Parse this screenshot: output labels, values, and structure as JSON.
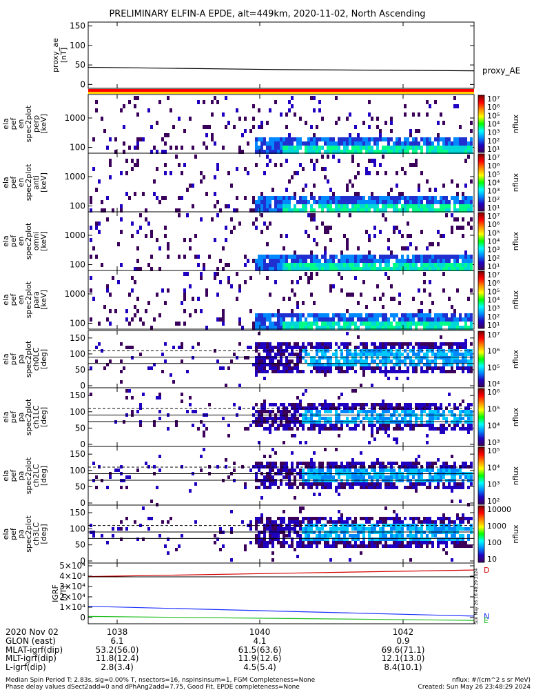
{
  "title": "PRELIMINARY ELFIN-A EPDE, alt=449km, 2020-11-02, North Ascending",
  "chart_data": [
    {
      "type": "line",
      "ylabel_lines": [
        "proxy_ae",
        "[nT]"
      ],
      "yticks": [
        "150",
        "100",
        "50",
        "0"
      ],
      "ylim": [
        -10,
        160
      ],
      "series": [
        {
          "name": "proxy_AE",
          "color": "#000000",
          "x": [
            0,
            0.5,
            1
          ],
          "values": [
            44,
            38,
            35
          ]
        }
      ]
    },
    {
      "type": "heatmap",
      "ylabel_lines": [
        "ela",
        "pef",
        "en",
        "spec2plot",
        "perp",
        "[keV]"
      ],
      "yticks": [
        "1000",
        "100"
      ],
      "log": true,
      "colorbar_ticks": [
        "10⁷",
        "10⁶",
        "10⁵",
        "10⁴",
        "10³",
        "10²",
        "10¹"
      ],
      "colorbar_label": "nflux"
    },
    {
      "type": "heatmap",
      "ylabel_lines": [
        "ela",
        "pef",
        "en",
        "spec2plot",
        "anti",
        "[keV]"
      ],
      "yticks": [
        "1000",
        "100"
      ],
      "log": true,
      "colorbar_ticks": [
        "10⁷",
        "10⁶",
        "10⁵",
        "10⁴",
        "10³",
        "10²",
        "10¹"
      ],
      "colorbar_label": "nflux"
    },
    {
      "type": "heatmap",
      "ylabel_lines": [
        "ela",
        "pef",
        "en",
        "spec2plot",
        "omni",
        "[keV]"
      ],
      "yticks": [
        "1000",
        "100"
      ],
      "log": true,
      "colorbar_ticks": [
        "10⁷",
        "10⁶",
        "10⁵",
        "10⁴",
        "10³",
        "10²",
        "10¹"
      ],
      "colorbar_label": "nflux"
    },
    {
      "type": "heatmap",
      "ylabel_lines": [
        "ela",
        "pef",
        "en",
        "spec2plot",
        "para",
        "[keV]"
      ],
      "yticks": [
        "1000",
        "100"
      ],
      "log": true,
      "colorbar_ticks": [
        "10⁷",
        "10⁶",
        "10⁵",
        "10⁴",
        "10³",
        "10²",
        "10¹"
      ],
      "colorbar_label": "nflux"
    },
    {
      "type": "heatmap",
      "ylabel_lines": [
        "ela",
        "pef",
        "pa",
        "spec2plot",
        "ch0LC",
        "[deg]"
      ],
      "yticks": [
        "150",
        "100",
        "50",
        "0"
      ],
      "ylim": [
        0,
        180
      ],
      "lines": [
        {
          "y": 110,
          "dashed": true
        },
        {
          "y": 90,
          "dashed": false
        },
        {
          "y": 70,
          "dashed": false
        }
      ],
      "colorbar_ticks": [
        "10⁷",
        "10⁶",
        "10⁵",
        "10⁴"
      ],
      "colorbar_label": "nflux"
    },
    {
      "type": "heatmap",
      "ylabel_lines": [
        "ela",
        "pef",
        "pa",
        "spec2plot",
        "ch1LC",
        "[deg]"
      ],
      "yticks": [
        "150",
        "100",
        "50",
        "0"
      ],
      "ylim": [
        0,
        180
      ],
      "lines": [
        {
          "y": 110,
          "dashed": true
        },
        {
          "y": 90,
          "dashed": false
        },
        {
          "y": 70,
          "dashed": false
        }
      ],
      "colorbar_ticks": [
        "10⁶",
        "10⁵",
        "10⁴",
        "10³"
      ],
      "colorbar_label": "nflux"
    },
    {
      "type": "heatmap",
      "ylabel_lines": [
        "ela",
        "pef",
        "pa",
        "spec2plot",
        "ch2LC",
        "[deg]"
      ],
      "yticks": [
        "150",
        "100",
        "50",
        "0"
      ],
      "ylim": [
        0,
        180
      ],
      "lines": [
        {
          "y": 110,
          "dashed": true
        },
        {
          "y": 90,
          "dashed": false
        },
        {
          "y": 70,
          "dashed": false
        }
      ],
      "colorbar_ticks": [
        "10⁵",
        "10⁴",
        "10³",
        "10²"
      ],
      "colorbar_label": "nflux"
    },
    {
      "type": "heatmap",
      "ylabel_lines": [
        "ela",
        "pef",
        "pa",
        "spec2plot",
        "ch3LC",
        "[deg]"
      ],
      "yticks": [
        "150",
        "100",
        "50",
        "0"
      ],
      "ylim": [
        0,
        180
      ],
      "lines": [
        {
          "y": 110,
          "dashed": true
        },
        {
          "y": 90,
          "dashed": false
        },
        {
          "y": 70,
          "dashed": false
        }
      ],
      "colorbar_ticks": [
        "10000",
        "1000",
        "100",
        "10"
      ],
      "colorbar_label": "nflux"
    },
    {
      "type": "line",
      "ylabel_lines": [
        "IGRF",
        "[nT]"
      ],
      "yticks": [
        "5×10⁴",
        "4×10⁴",
        "3×10⁴",
        "2×10⁴",
        "1×10⁴",
        "0"
      ],
      "ylim": [
        -2000,
        52000
      ],
      "series": [
        {
          "name": "D",
          "color": "#d40000",
          "x": [
            0,
            1
          ],
          "values": [
            40000,
            45800
          ]
        },
        {
          "name": "N",
          "color": "#1a2fff",
          "x": [
            0,
            1
          ],
          "values": [
            13500,
            4800
          ]
        },
        {
          "name": "E",
          "color": "#1fbf1f",
          "x": [
            0,
            1
          ],
          "values": [
            4500,
            1000
          ]
        }
      ]
    }
  ],
  "xaxis": {
    "ticks": [
      {
        "label": "1038",
        "glon": "6.1",
        "mlat": "53.2(56.0)",
        "mlt": "11.8(12.4)",
        "l": "2.8(3.4)"
      },
      {
        "label": "1040",
        "glon": "4.1",
        "mlat": "61.5(63.6)",
        "mlt": "11.9(12.6)",
        "l": "4.5(5.4)"
      },
      {
        "label": "1042",
        "glon": "0.9",
        "mlat": "69.6(71.1)",
        "mlt": "12.1(13.0)",
        "l": "8.4(10.1)"
      }
    ],
    "row_labels": [
      "2020 Nov 02",
      "GLON (east)",
      "MLAT-igrf(dip)",
      "MLT-igrf(dip)",
      "L-igrf(dip)"
    ]
  },
  "side_stamp": "Sun May 26 16:48:29 2024",
  "footer": {
    "line1": "Median Spin Period T: 2.83s, sig=0.00% T, nsectors=16, nspinsinsum=1, FGM Completeness=None",
    "line2": "Phase delay values dSect2add=0 and dPhAng2add=7.75, Good Fit, EPDE completeness=None",
    "units": "nflux: #/(cm^2 s sr MeV)",
    "created": "Created: Sun May 26 23:48:29 2024"
  },
  "colors": {
    "rainbow": [
      "#7a0000",
      "#ff0000",
      "#ff8800",
      "#ffff00",
      "#00ff00",
      "#00ffff",
      "#0088ff",
      "#2000c0",
      "#3a005a"
    ],
    "indicator_top": "#ff0000",
    "indicator_bottom": "#ffcc00"
  }
}
